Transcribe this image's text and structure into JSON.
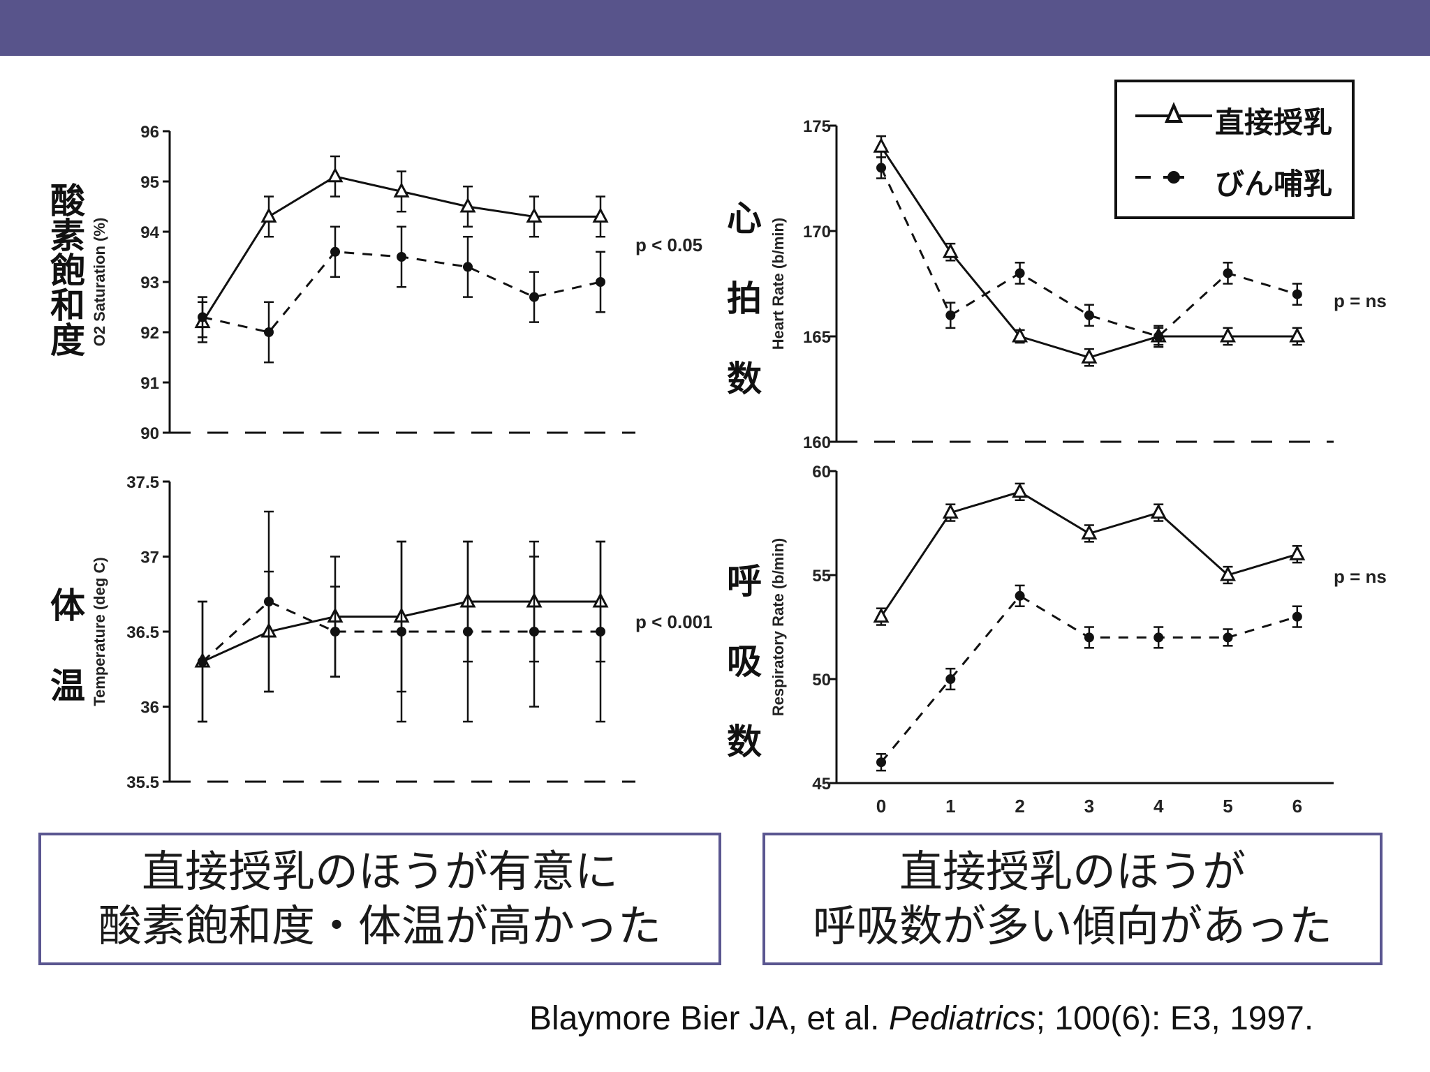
{
  "slide": {
    "conclusion_left": [
      "直接授乳のほうが有意に",
      "酸素飽和度・体温が高かった"
    ],
    "conclusion_right": [
      "直接授乳のほうが",
      "呼吸数が多い傾向があった"
    ],
    "citation": {
      "authors": "Blaymore Bier JA, et al. ",
      "journal": "Pediatrics",
      "rest": "; 100(6): E3, 1997."
    },
    "colors": {
      "header_bar": "#58548b",
      "box_border": "#5a5690"
    }
  },
  "legend": {
    "direct": {
      "label": "直接授乳",
      "marker": "triangle",
      "line": "solid"
    },
    "bottle": {
      "label": "びん哺乳",
      "marker": "circle",
      "line": "dashed"
    }
  },
  "chart_data": [
    {
      "id": "o2",
      "type": "line",
      "ylabel": "O2 Saturation (%)",
      "jp_label": "酸素飽和度",
      "p_value": "p < 0.05",
      "x": [
        0,
        1,
        2,
        3,
        4,
        5,
        6
      ],
      "ylim": [
        90,
        96
      ],
      "yticks": [
        "96",
        "95",
        "94",
        "93",
        "92",
        "91",
        "90"
      ],
      "series": [
        {
          "key": "direct",
          "values": [
            92.2,
            94.3,
            95.1,
            94.8,
            94.5,
            94.3,
            94.3
          ],
          "errors": [
            0.4,
            0.4,
            0.4,
            0.4,
            0.4,
            0.4,
            0.4
          ]
        },
        {
          "key": "bottle",
          "values": [
            92.3,
            92.0,
            93.6,
            93.5,
            93.3,
            92.7,
            93.0
          ],
          "errors": [
            0.4,
            0.6,
            0.5,
            0.6,
            0.6,
            0.5,
            0.6
          ]
        }
      ]
    },
    {
      "id": "hr",
      "type": "line",
      "ylabel": "Heart Rate (b/min)",
      "jp_label": "心拍数",
      "p_value": "p = ns",
      "x": [
        0,
        1,
        2,
        3,
        4,
        5,
        6
      ],
      "ylim": [
        160,
        175
      ],
      "yticks": [
        "175",
        "170",
        "165",
        "160"
      ],
      "series": [
        {
          "key": "direct",
          "values": [
            174,
            169,
            165,
            164,
            165,
            165,
            165
          ],
          "errors": [
            0.5,
            0.4,
            0.3,
            0.4,
            0.4,
            0.4,
            0.4
          ]
        },
        {
          "key": "bottle",
          "values": [
            173,
            166,
            168,
            166,
            165,
            168,
            167
          ],
          "errors": [
            0.5,
            0.6,
            0.5,
            0.5,
            0.5,
            0.5,
            0.5
          ]
        }
      ]
    },
    {
      "id": "temp",
      "type": "line",
      "ylabel": "Temperature (deg C)",
      "jp_label": "体温",
      "p_value": "p < 0.001",
      "x": [
        0,
        1,
        2,
        3,
        4,
        5,
        6
      ],
      "ylim": [
        35.5,
        37.5
      ],
      "yticks": [
        "37.5",
        "37",
        "36.5",
        "36",
        "35.5"
      ],
      "series": [
        {
          "key": "direct",
          "values": [
            36.3,
            36.5,
            36.6,
            36.6,
            36.7,
            36.7,
            36.7
          ],
          "errors": [
            0.4,
            0.4,
            0.4,
            0.5,
            0.4,
            0.4,
            0.4
          ]
        },
        {
          "key": "bottle",
          "values": [
            36.3,
            36.7,
            36.5,
            36.5,
            36.5,
            36.5,
            36.5
          ],
          "errors": [
            0.4,
            0.6,
            0.3,
            0.6,
            0.6,
            0.5,
            0.6
          ]
        }
      ]
    },
    {
      "id": "rr",
      "type": "line",
      "ylabel": "Respiratory Rate (b/min)",
      "jp_label": "呼吸数",
      "p_value": "p = ns",
      "x": [
        0,
        1,
        2,
        3,
        4,
        5,
        6
      ],
      "xticks": [
        "0",
        "1",
        "2",
        "3",
        "4",
        "5",
        "6"
      ],
      "ylim": [
        45,
        60
      ],
      "yticks": [
        "60",
        "55",
        "50",
        "45"
      ],
      "series": [
        {
          "key": "direct",
          "values": [
            53,
            58,
            59,
            57,
            58,
            55,
            56
          ],
          "errors": [
            0.4,
            0.4,
            0.4,
            0.4,
            0.4,
            0.4,
            0.4
          ]
        },
        {
          "key": "bottle",
          "values": [
            46,
            50,
            54,
            52,
            52,
            52,
            53
          ],
          "errors": [
            0.4,
            0.5,
            0.5,
            0.5,
            0.5,
            0.4,
            0.5
          ]
        }
      ]
    }
  ]
}
